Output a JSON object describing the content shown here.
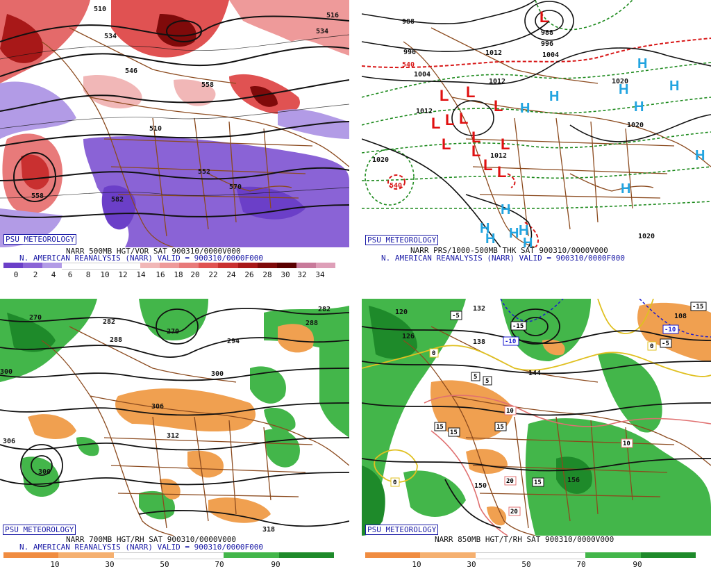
{
  "panels": [
    {
      "id": "p1",
      "badge": "PSU METEOROLOGY",
      "line1": "NARR 500MB HGT/VOR SAT 900310/0000V000",
      "line2": "N. AMERICAN REANALYSIS (NARR) VALID = 900310/0000F000",
      "scale_labels": [
        "0",
        "2",
        "4",
        "6",
        "8",
        "10",
        "12",
        "14",
        "16",
        "18",
        "20",
        "22",
        "24",
        "26",
        "28",
        "30",
        "32",
        "34"
      ],
      "scale_colors": [
        "#6b3fc8",
        "#8a63d6",
        "#b29be6",
        "#ffffff",
        "#ffffff",
        "#ffffff",
        "#ffffff",
        "#f1b7b7",
        "#ee9a9a",
        "#e87a7a",
        "#e05252",
        "#c93030",
        "#a81818",
        "#7f0a0a",
        "#5a0000",
        "#c87a9a",
        "#de9fb8",
        "#f3c9dc"
      ],
      "map_labels": [
        "510",
        "534",
        "546",
        "558",
        "510",
        "552",
        "570",
        "558",
        "582",
        "516",
        "534"
      ]
    },
    {
      "id": "p2",
      "badge": "PSU METEOROLOGY",
      "line1": "NARR PRS/1000-500MB THK SAT 900310/0000V000",
      "line2": "N. AMERICAN REANALYSIS (NARR) VALID = 900310/0000F000",
      "map_labels": [
        "988",
        "996",
        "1004",
        "1012",
        "1012",
        "1020",
        "1020",
        "1012",
        "540",
        "1020",
        "988",
        "996",
        "1004",
        "1012",
        "540",
        "1020"
      ],
      "lows": [
        "L",
        "L",
        "L",
        "L",
        "L",
        "L",
        "L",
        "L",
        "L",
        "L",
        "L",
        "L",
        "L"
      ],
      "highs": [
        "H",
        "H",
        "H",
        "H",
        "H",
        "H",
        "H",
        "H",
        "H",
        "H",
        "H",
        "H",
        "H",
        "H"
      ]
    },
    {
      "id": "p3",
      "badge": "PSU METEOROLOGY",
      "line1": "NARR 700MB HGT/RH SAT 900310/0000V000",
      "line2": "N. AMERICAN REANALYSIS (NARR) VALID = 900310/0000F000",
      "scale_labels": [
        "10",
        "30",
        "50",
        "70",
        "90"
      ],
      "map_labels": [
        "270",
        "282",
        "288",
        "270",
        "294",
        "282",
        "288",
        "300",
        "306",
        "312",
        "306",
        "300",
        "318",
        "300"
      ]
    },
    {
      "id": "p4",
      "badge": "PSU METEOROLOGY",
      "line1": "NARR 850MB HGT/T/RH SAT 900310/0000V000",
      "scale_labels": [
        "10",
        "30",
        "50",
        "70",
        "90"
      ],
      "map_labels": [
        "120",
        "126",
        "132",
        "138",
        "144",
        "150",
        "156",
        "108",
        "-5",
        "-15",
        "-10",
        "-15",
        "-10",
        "-5",
        "0",
        "0",
        "5",
        "5",
        "10",
        "10",
        "15",
        "15",
        "15",
        "15",
        "20",
        "20",
        "0"
      ]
    }
  ]
}
